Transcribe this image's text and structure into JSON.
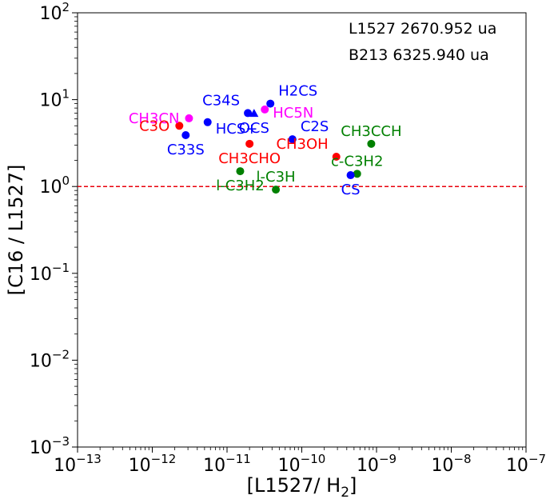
{
  "chart_data": {
    "type": "scatter",
    "xscale": "log",
    "yscale": "log",
    "xlim": [
      1e-13,
      1e-07
    ],
    "ylim": [
      0.001,
      100
    ],
    "xticks": [
      {
        "value": 1e-13,
        "base": "10",
        "exp": "−13"
      },
      {
        "value": 1e-12,
        "base": "10",
        "exp": "−12"
      },
      {
        "value": 1e-11,
        "base": "10",
        "exp": "−11"
      },
      {
        "value": 1e-10,
        "base": "10",
        "exp": "−10"
      },
      {
        "value": 1e-09,
        "base": "10",
        "exp": "−9"
      },
      {
        "value": 1e-08,
        "base": "10",
        "exp": "−8"
      },
      {
        "value": 1e-07,
        "base": "10",
        "exp": "−7"
      }
    ],
    "yticks": [
      {
        "value": 0.001,
        "base": "10",
        "exp": "−3"
      },
      {
        "value": 0.01,
        "base": "10",
        "exp": "−2"
      },
      {
        "value": 0.1,
        "base": "10",
        "exp": "−1"
      },
      {
        "value": 1,
        "base": "10",
        "exp": "0"
      },
      {
        "value": 10,
        "base": "10",
        "exp": "1"
      },
      {
        "value": 100,
        "base": "10",
        "exp": "2"
      }
    ],
    "xlabel_main": "[L1527/ H",
    "xlabel_sub": "2",
    "xlabel_end": "]",
    "ylabel": "[C16 / L1527]",
    "reference_line": {
      "y": 1,
      "color": "#e8000b",
      "style": "dashed"
    },
    "annotations": [
      "L1527 2670.952 ua",
      "B213 6325.940 ua"
    ],
    "colors": {
      "blue": "#0000ff",
      "red": "#ff0000",
      "green": "#008000",
      "magenta": "#ff00ff"
    },
    "points": [
      {
        "label": "CH3CN",
        "x": 3.1e-12,
        "y": 6.1,
        "color": "magenta",
        "marker": "circle",
        "label_pos": "left"
      },
      {
        "label": "C3O",
        "x": 2.3e-12,
        "y": 5.0,
        "color": "red",
        "marker": "circle",
        "label_pos": "left"
      },
      {
        "label": "C33S",
        "x": 2.8e-12,
        "y": 3.9,
        "color": "blue",
        "marker": "circle",
        "label_pos": "below"
      },
      {
        "label": "HCS+",
        "x": 5.5e-12,
        "y": 5.5,
        "color": "blue",
        "marker": "circle",
        "label_pos": "right-below"
      },
      {
        "label": "C34S",
        "x": 1.9e-11,
        "y": 7.0,
        "color": "blue",
        "marker": "circle",
        "label_pos": "left-above"
      },
      {
        "label": "OCS",
        "x": 2.3e-11,
        "y": 6.9,
        "color": "blue",
        "marker": "triangle",
        "label_pos": "below"
      },
      {
        "label": "H2CS",
        "x": 3.8e-11,
        "y": 9.0,
        "color": "blue",
        "marker": "circle",
        "label_pos": "right-above"
      },
      {
        "label": "HC5N",
        "x": 3.2e-11,
        "y": 7.7,
        "color": "magenta",
        "marker": "circle",
        "label_pos": "right"
      },
      {
        "label": "CH3CHO",
        "x": 2e-11,
        "y": 3.1,
        "color": "red",
        "marker": "circle",
        "label_pos": "below"
      },
      {
        "label": "C2S",
        "x": 7.5e-11,
        "y": 3.5,
        "color": "blue",
        "marker": "circle",
        "label_pos": "right-above"
      },
      {
        "label": "CH3OH",
        "x": 2.9e-10,
        "y": 2.2,
        "color": "red",
        "marker": "circle",
        "label_pos": "left-above"
      },
      {
        "label": "l-C3H2",
        "x": 1.5e-11,
        "y": 1.5,
        "color": "green",
        "marker": "circle",
        "label_pos": "below"
      },
      {
        "label": "l-C3H",
        "x": 4.5e-11,
        "y": 0.92,
        "color": "green",
        "marker": "circle",
        "label_pos": "above"
      },
      {
        "label": "CH3CCH",
        "x": 8.5e-10,
        "y": 3.1,
        "color": "green",
        "marker": "circle",
        "label_pos": "above"
      },
      {
        "label": "c-C3H2",
        "x": 5.5e-10,
        "y": 1.4,
        "color": "green",
        "marker": "circle",
        "label_pos": "above"
      },
      {
        "label": "CS",
        "x": 4.5e-10,
        "y": 1.35,
        "color": "blue",
        "marker": "circle",
        "label_pos": "below"
      }
    ]
  }
}
